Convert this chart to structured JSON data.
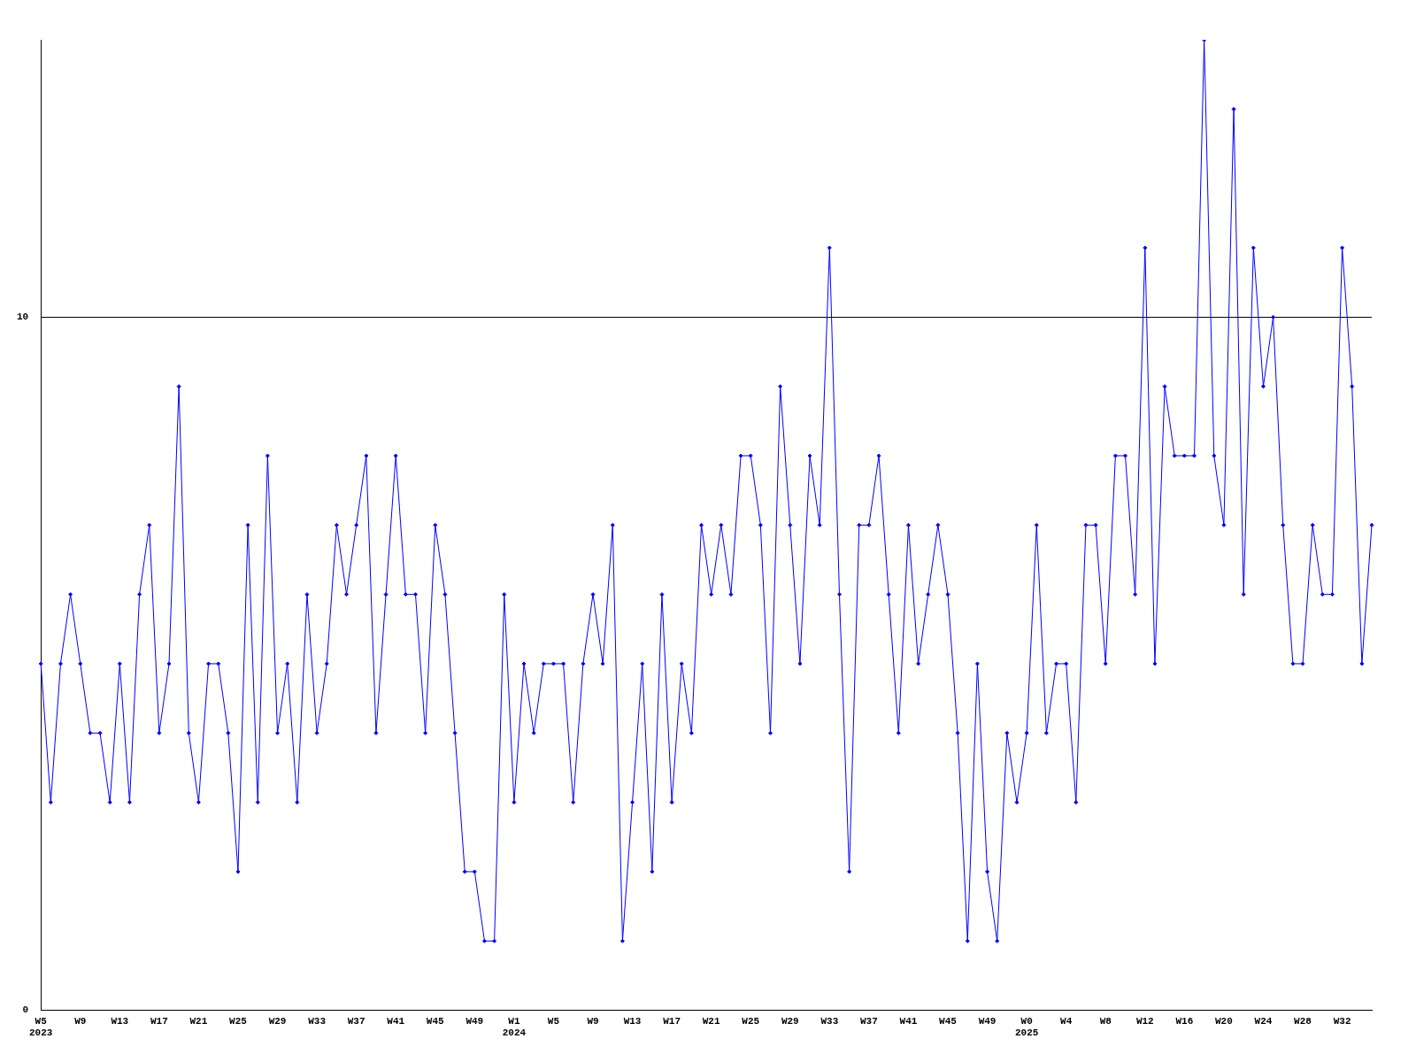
{
  "chart_data": {
    "type": "line",
    "categories": [
      "W5\n2023",
      null,
      null,
      null,
      "W9",
      null,
      null,
      null,
      "W13",
      null,
      null,
      null,
      "W17",
      null,
      null,
      null,
      "W21",
      null,
      null,
      null,
      "W25",
      null,
      null,
      null,
      "W29",
      null,
      null,
      null,
      "W33",
      null,
      null,
      null,
      "W37",
      null,
      null,
      null,
      "W41",
      null,
      null,
      null,
      "W45",
      null,
      null,
      null,
      "W49",
      null,
      null,
      null,
      "W1\n2024",
      null,
      null,
      null,
      "W5",
      null,
      null,
      null,
      "W9",
      null,
      null,
      null,
      "W13",
      null,
      null,
      null,
      "W17",
      null,
      null,
      null,
      "W21",
      null,
      null,
      null,
      "W25",
      null,
      null,
      null,
      "W29",
      null,
      null,
      null,
      "W33",
      null,
      null,
      null,
      "W37",
      null,
      null,
      null,
      "W41",
      null,
      null,
      null,
      "W45",
      null,
      null,
      null,
      "W49",
      null,
      null,
      null,
      "W0\n2025",
      null,
      null,
      null,
      "W4",
      null,
      null,
      null,
      "W8",
      null,
      null,
      null,
      "W12",
      null,
      null,
      null,
      "W16",
      null,
      null,
      null,
      "W20",
      null,
      null,
      null,
      "W24",
      null,
      null,
      null,
      "W28",
      null,
      null,
      null,
      "W32",
      null,
      null,
      null
    ],
    "series": [
      {
        "color": "#0000ff",
        "values": [
          5,
          3,
          5,
          6,
          5,
          4,
          4,
          3,
          5,
          3,
          6,
          7,
          4,
          5,
          9,
          4,
          3,
          5,
          5,
          4,
          2,
          7,
          3,
          8,
          4,
          5,
          3,
          6,
          4,
          5,
          7,
          6,
          7,
          8,
          4,
          6,
          8,
          6,
          6,
          4,
          7,
          6,
          4,
          2,
          2,
          1,
          1,
          6,
          3,
          5,
          4,
          5,
          5,
          5,
          3,
          5,
          6,
          5,
          7,
          1,
          3,
          5,
          2,
          6,
          3,
          5,
          4,
          7,
          6,
          7,
          6,
          8,
          8,
          7,
          4,
          9,
          7,
          5,
          8,
          7,
          11,
          6,
          2,
          7,
          7,
          8,
          6,
          4,
          7,
          5,
          6,
          7,
          6,
          4,
          1,
          5,
          2,
          1,
          4,
          3,
          4,
          7,
          4,
          5,
          5,
          3,
          7,
          7,
          5,
          8,
          8,
          6,
          11,
          5,
          9,
          8,
          8,
          8,
          14,
          8,
          7,
          13,
          6,
          11,
          9,
          10,
          7,
          5,
          5,
          7,
          6,
          6,
          11,
          9,
          5,
          7
        ]
      }
    ],
    "ylim": [
      0,
      14
    ],
    "yticks": [
      0,
      10
    ],
    "grid": "y",
    "marker": "diamond",
    "legend": false
  }
}
